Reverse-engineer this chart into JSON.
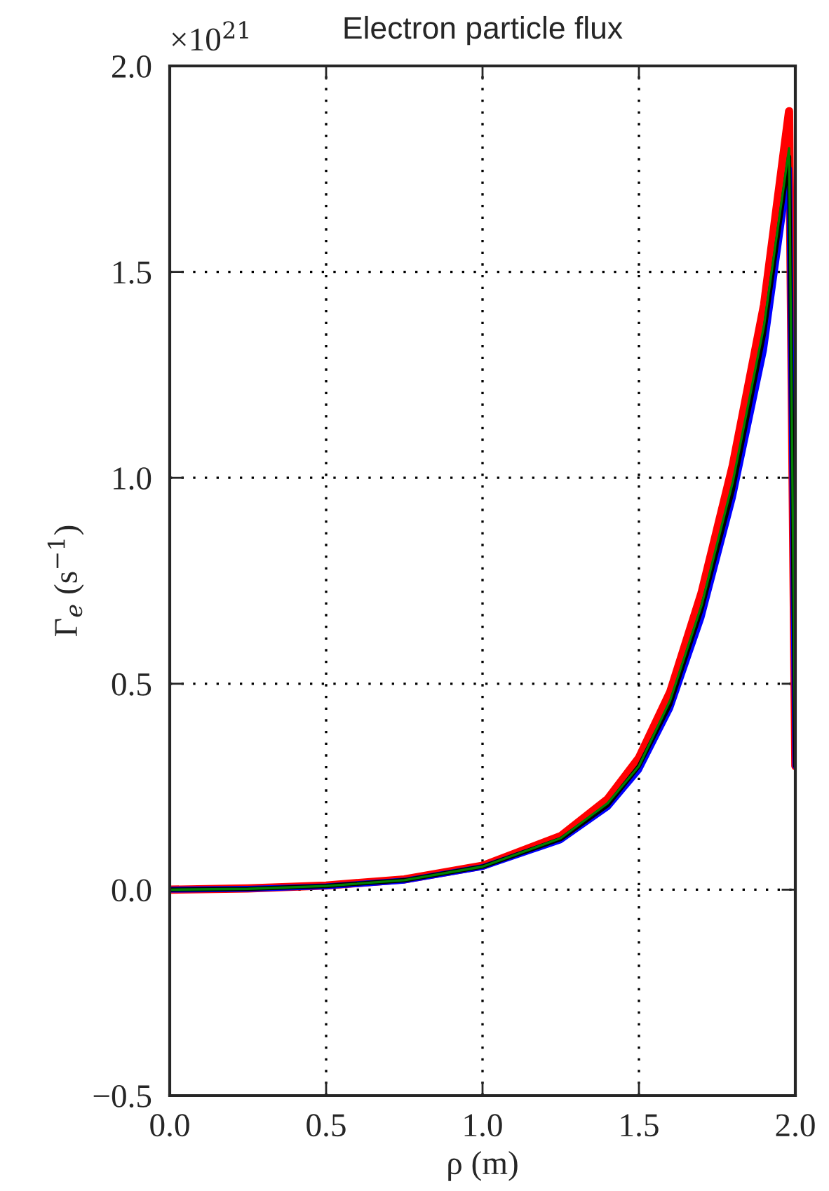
{
  "chart_data": {
    "type": "line",
    "title": "Electron particle flux",
    "xlabel": "ρ (m)",
    "ylabel": "Γ$_{e}$ (s$^{−1}$)",
    "annotations": [
      "×10$^{21}$"
    ],
    "x": [
      0,
      0.25,
      0.5,
      0.75,
      1.0,
      1.25,
      1.4,
      1.5,
      1.6,
      1.7,
      1.8,
      1.9,
      1.98,
      2.0
    ],
    "series": [
      {
        "color": "#008000",
        "values": [
          0,
          0.002,
          0.009,
          0.023,
          0.056,
          0.125,
          0.21,
          0.3,
          0.46,
          0.69,
          0.99,
          1.37,
          1.8,
          0.3
        ]
      },
      {
        "color": "#000000",
        "values": [
          0,
          0.002,
          0.009,
          0.023,
          0.056,
          0.123,
          0.205,
          0.3,
          0.45,
          0.68,
          0.97,
          1.35,
          1.78,
          0.3
        ]
      },
      {
        "color": "#0000ff",
        "values": [
          0,
          0.002,
          0.008,
          0.022,
          0.055,
          0.12,
          0.2,
          0.29,
          0.44,
          0.66,
          0.95,
          1.31,
          1.75,
          0.3
        ]
      },
      {
        "color": "#ff0000",
        "values": [
          0,
          0.003,
          0.01,
          0.025,
          0.058,
          0.13,
          0.22,
          0.32,
          0.48,
          0.72,
          1.03,
          1.42,
          1.89,
          0.3
        ]
      }
    ],
    "xlim": [
      0,
      2.0
    ],
    "xticks": [
      {
        "value": 0,
        "label": "0.0"
      },
      0.5,
      {
        "value": 1,
        "label": "1.0"
      },
      1.5,
      {
        "value": 2,
        "label": "2.0"
      }
    ],
    "ylim": [
      -0.5,
      2.0
    ],
    "yticks": [
      {
        "value": -0.5,
        "label": "−0.5"
      },
      {
        "value": 0,
        "label": "0.0"
      },
      0.5,
      {
        "value": 1,
        "label": "1.0"
      },
      1.5,
      {
        "value": 2,
        "label": "2.0"
      }
    ],
    "grid": true,
    "legend": false,
    "line_style": "solid"
  }
}
